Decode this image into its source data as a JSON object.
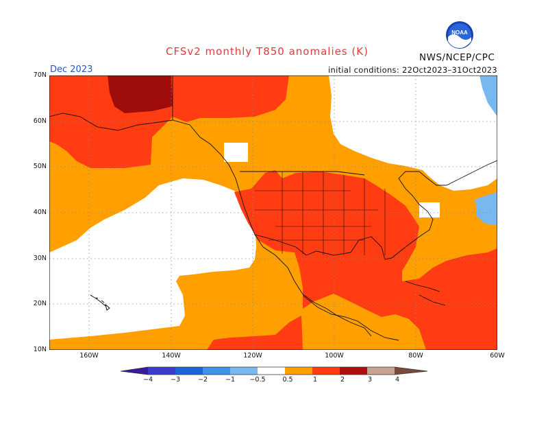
{
  "title": "CFSv2 monthly T850 anomalies (K)",
  "agency": "NWS/NCEP/CPC",
  "logo_text": "NOAA",
  "month": "Dec 2023",
  "initial_conditions": "initial conditions: 22Oct2023–31Oct2023",
  "lat_labels": [
    "70N",
    "60N",
    "50N",
    "40N",
    "30N",
    "20N",
    "10N"
  ],
  "lon_labels": [
    "160W",
    "140W",
    "120W",
    "100W",
    "80W",
    "60W"
  ],
  "colorbar": {
    "tick_labels": [
      "−4",
      "−3",
      "−2",
      "−1",
      "−0.5",
      "0.5",
      "1",
      "2",
      "3",
      "4"
    ],
    "colors": {
      "lt_m4": "#3a1a9e",
      "m4_m3": "#3b3ecc",
      "m3_m2": "#1d66d8",
      "m2_m1": "#3d93e8",
      "m1_m05": "#78b8f0",
      "m05_05": "#ffffff",
      "05_1": "#ffa000",
      "1_2": "#ff3c12",
      "2_3": "#b00e0e",
      "3_4": "#c8a290",
      "gt_4": "#7a4a3a"
    }
  },
  "anomaly_colors": {
    "neutral": "#ffffff",
    "light_warm": "#ffa000",
    "warm": "#ff3c12",
    "very_warm": "#9e0c0c",
    "light_cold": "#78b8f0"
  }
}
